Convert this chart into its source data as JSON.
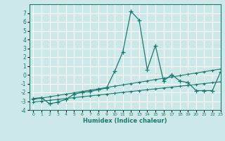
{
  "x": [
    0,
    1,
    2,
    3,
    4,
    5,
    6,
    7,
    8,
    9,
    10,
    11,
    12,
    13,
    14,
    15,
    16,
    17,
    18,
    19,
    20,
    21,
    22,
    23
  ],
  "line1": [
    -2.7,
    -2.6,
    -3.3,
    -3.1,
    -2.8,
    -2.2,
    -2.0,
    -1.9,
    -1.7,
    -1.5,
    0.4,
    2.6,
    7.2,
    6.2,
    0.6,
    3.3,
    -0.7,
    0.0,
    -0.7,
    -0.9,
    -1.8,
    -1.8,
    -1.8,
    0.3
  ],
  "line2_y": [
    -2.8,
    -2.65,
    -2.5,
    -2.35,
    -2.2,
    -2.05,
    -1.9,
    -1.75,
    -1.6,
    -1.45,
    -1.3,
    -1.15,
    -1.0,
    -0.85,
    -0.7,
    -0.55,
    -0.4,
    -0.25,
    -0.1,
    0.05,
    0.2,
    0.35,
    0.5,
    0.65
  ],
  "line3_y": [
    -3.1,
    -3.0,
    -2.9,
    -2.8,
    -2.7,
    -2.6,
    -2.5,
    -2.4,
    -2.3,
    -2.2,
    -2.1,
    -2.0,
    -1.9,
    -1.8,
    -1.7,
    -1.6,
    -1.5,
    -1.4,
    -1.3,
    -1.2,
    -1.1,
    -1.0,
    -0.9,
    -0.8
  ],
  "line_color": "#1a7a6e",
  "bg_color": "#cce8e8",
  "grid_color": "#ffffff",
  "xlabel": "Humidex (Indice chaleur)",
  "ylim": [
    -4,
    8
  ],
  "xlim": [
    -0.5,
    23
  ],
  "yticks": [
    -4,
    -3,
    -2,
    -1,
    0,
    1,
    2,
    3,
    4,
    5,
    6,
    7
  ],
  "xticks": [
    0,
    1,
    2,
    3,
    4,
    5,
    6,
    7,
    8,
    9,
    10,
    11,
    12,
    13,
    14,
    15,
    16,
    17,
    18,
    19,
    20,
    21,
    22,
    23
  ]
}
